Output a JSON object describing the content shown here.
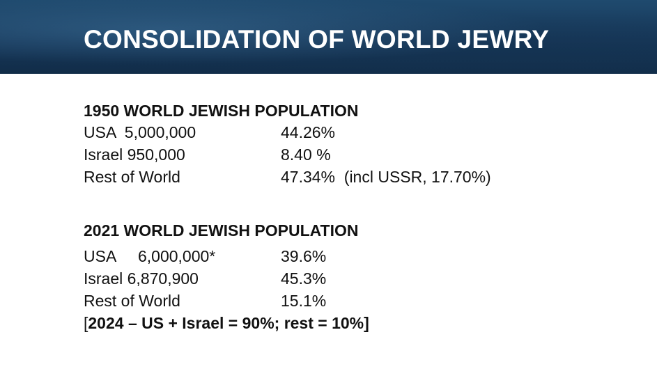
{
  "title": "CONSOLIDATION OF WORLD JEWRY",
  "section_1950": {
    "heading": "1950 WORLD JEWISH POPULATION",
    "rows": [
      {
        "label": "USA  5,000,000",
        "pct": "44.26%"
      },
      {
        "label": "Israel 950,000",
        "pct": "8.40 %"
      },
      {
        "label": "Rest of World",
        "pct": "47.34%  (incl USSR, 17.70%)"
      }
    ]
  },
  "section_2021": {
    "heading": "2021 WORLD JEWISH POPULATION",
    "rows": [
      {
        "label": "USA     6,000,000*",
        "pct": "39.6%"
      },
      {
        "label": "Israel 6,870,900",
        "pct": "45.3%"
      },
      {
        "label": "Rest of World",
        "pct": "15.1%"
      }
    ],
    "note_open": "[",
    "note_text": "2024 – US + Israel = 90%; rest = 10%]"
  }
}
